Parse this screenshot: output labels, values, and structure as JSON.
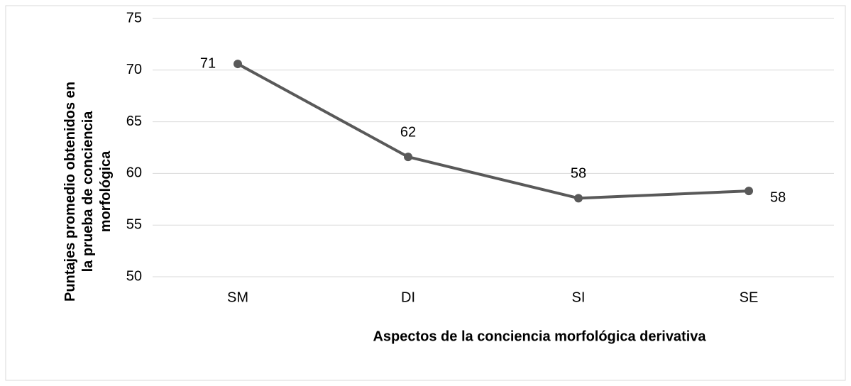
{
  "chart_data": {
    "type": "line",
    "categories": [
      "SM",
      "DI",
      "SI",
      "SE"
    ],
    "series": [
      {
        "name": "Puntajes",
        "color": "#595959",
        "values": [
          70.6,
          61.6,
          57.6,
          58.3
        ],
        "value_labels": [
          "71",
          "62",
          "58",
          "58"
        ]
      }
    ],
    "ylim": [
      50,
      75
    ],
    "yticks": [
      50,
      55,
      60,
      65,
      70,
      75
    ],
    "grid": true,
    "x_label": "Aspectos de la conciencia morfológica derivativa",
    "y_label": "Puntajes promedio obtenidos en la prueba de conciencia morfológica"
  }
}
